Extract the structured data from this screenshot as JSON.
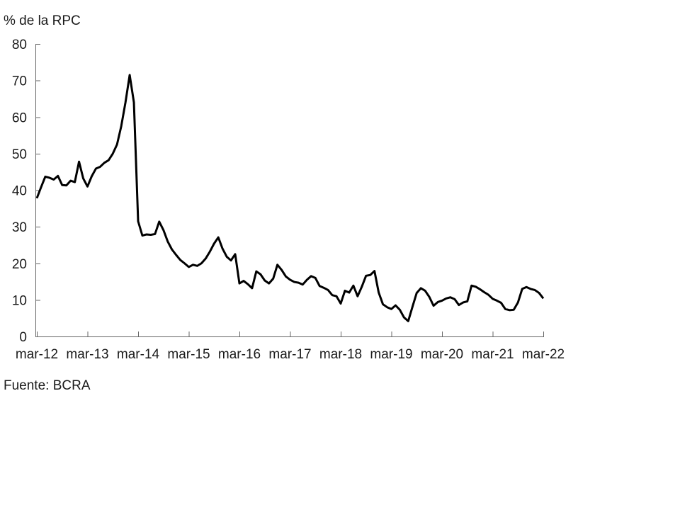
{
  "chart_data": {
    "type": "line",
    "title": "% de la RPC",
    "source_note": "Fuente: BCRA",
    "grid": false,
    "legend": false,
    "line_color": "#000000",
    "axis_color": "#666666",
    "text_color": "#1a1a1a",
    "x_axis": {
      "tick_labels": [
        "mar-12",
        "mar-13",
        "mar-14",
        "mar-15",
        "mar-16",
        "mar-17",
        "mar-18",
        "mar-19",
        "mar-20",
        "mar-21",
        "mar-22"
      ],
      "frequency": "monthly",
      "start": "mar-12",
      "end": "mar-22"
    },
    "y_axis": {
      "ticks": [
        0,
        10,
        20,
        30,
        40,
        50,
        60,
        70,
        80
      ],
      "range": [
        0,
        80
      ],
      "label": "% de la RPC"
    },
    "series": [
      {
        "name": "% de la RPC",
        "values": [
          37.8,
          40.8,
          43.7,
          43.4,
          42.9,
          43.9,
          41.4,
          41.3,
          42.6,
          42.2,
          47.8,
          43.2,
          41.0,
          43.8,
          45.9,
          46.4,
          47.5,
          48.2,
          50.0,
          52.5,
          57.5,
          64.0,
          71.5,
          64.0,
          31.5,
          27.6,
          27.9,
          27.8,
          28.0,
          31.4,
          29.1,
          26.0,
          23.8,
          22.3,
          20.9,
          20.0,
          19.0,
          19.6,
          19.3,
          20.0,
          21.3,
          23.2,
          25.4,
          27.1,
          24.0,
          21.8,
          20.8,
          22.5,
          14.5,
          15.2,
          14.3,
          13.2,
          17.8,
          17.0,
          15.3,
          14.5,
          15.8,
          19.6,
          18.2,
          16.4,
          15.5,
          14.9,
          14.7,
          14.2,
          15.5,
          16.5,
          16.0,
          13.8,
          13.3,
          12.7,
          11.3,
          11.0,
          9.0,
          12.5,
          12.0,
          13.9,
          11.0,
          13.6,
          16.6,
          16.8,
          17.9,
          12.0,
          8.8,
          8.0,
          7.5,
          8.5,
          7.3,
          5.2,
          4.2,
          8.1,
          11.9,
          13.2,
          12.5,
          10.8,
          8.4,
          9.4,
          9.8,
          10.4,
          10.7,
          10.2,
          8.6,
          9.3,
          9.6,
          13.9,
          13.6,
          12.9,
          12.1,
          11.4,
          10.3,
          9.8,
          9.2,
          7.5,
          7.2,
          7.3,
          9.3,
          13.0,
          13.5,
          13.0,
          12.7,
          11.9,
          10.4
        ]
      }
    ]
  }
}
